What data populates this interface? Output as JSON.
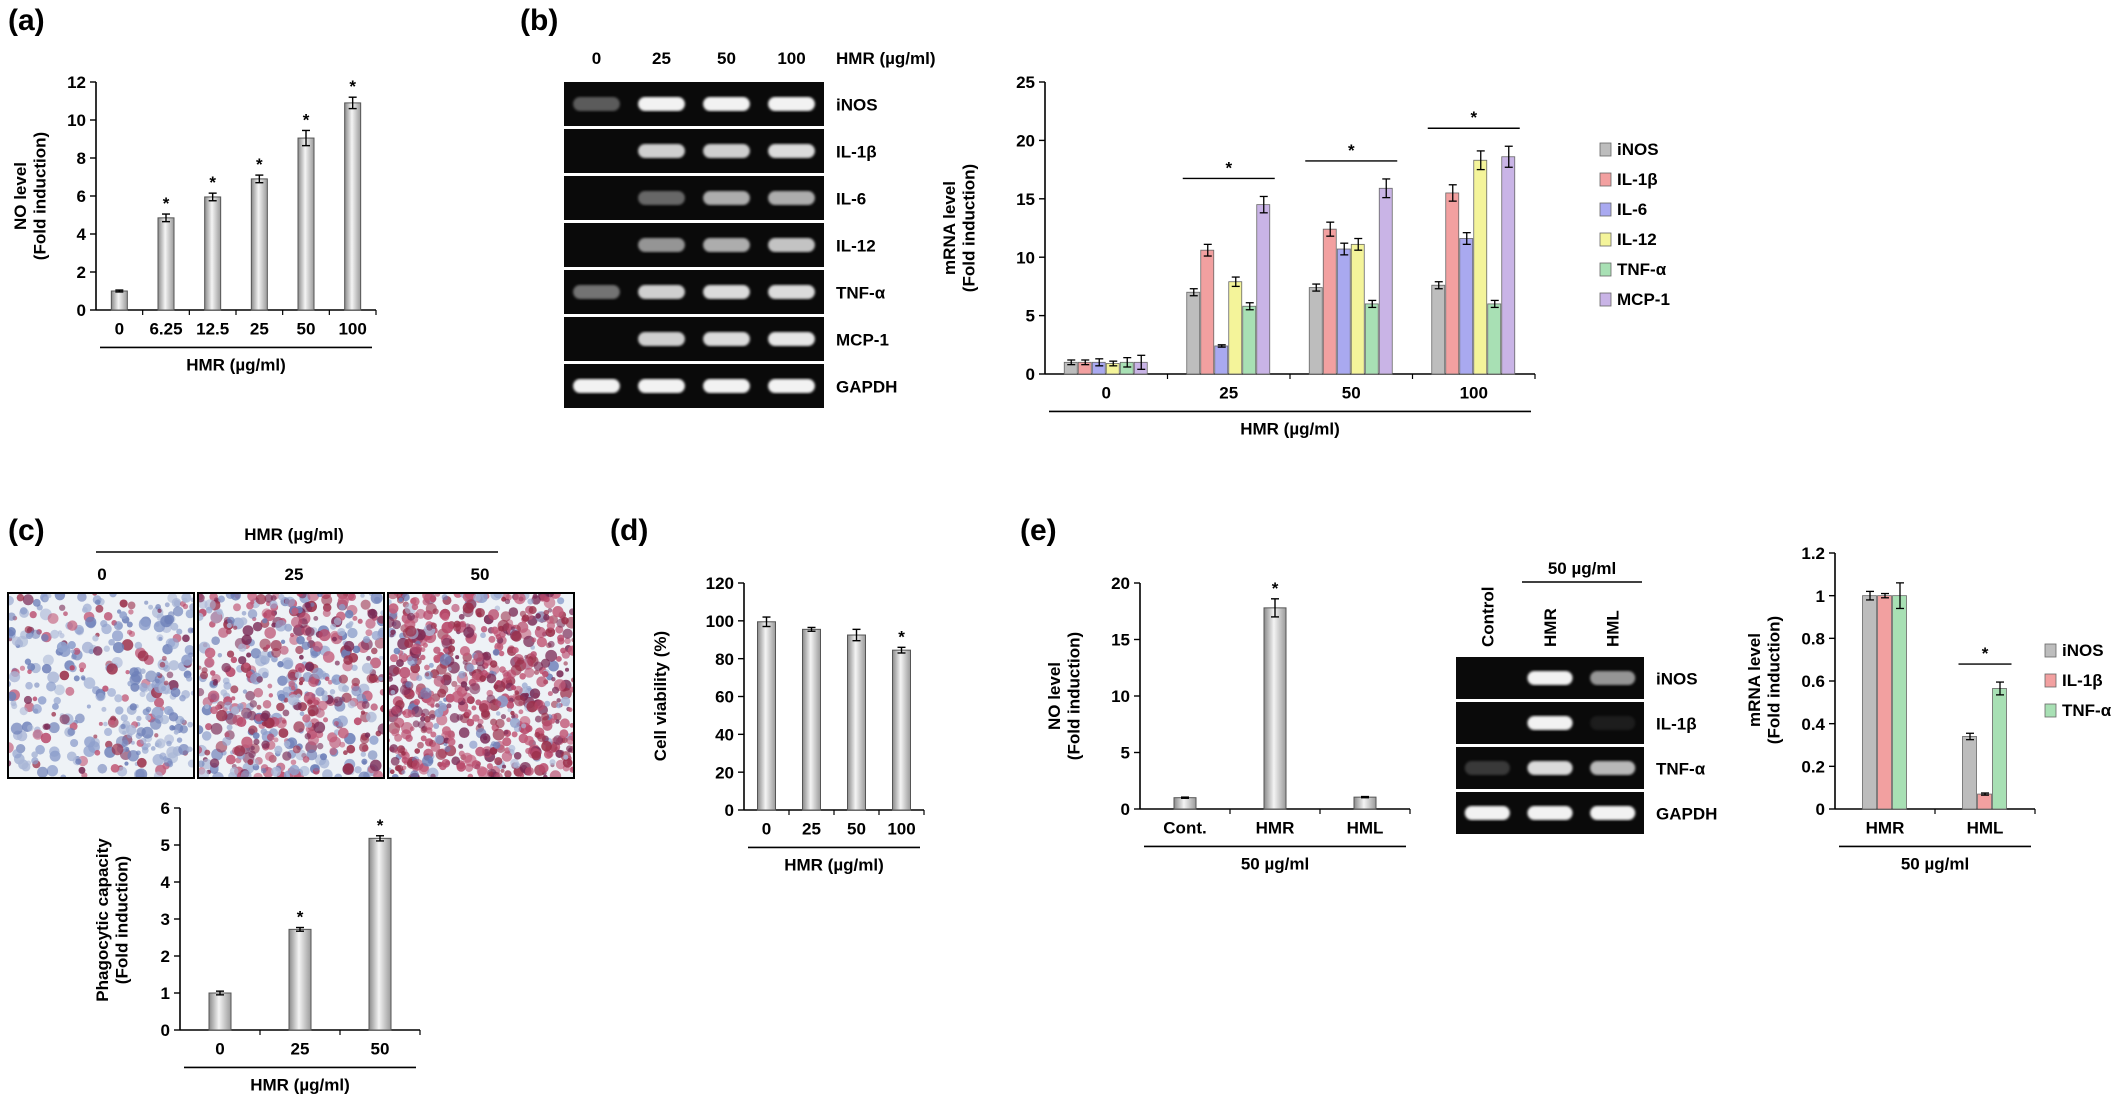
{
  "panels": {
    "a": {
      "letter": "(a)"
    },
    "b": {
      "letter": "(b)"
    },
    "c": {
      "letter": "(c)"
    },
    "d": {
      "letter": "(d)"
    },
    "e": {
      "letter": "(e)"
    }
  },
  "colors": {
    "iNOS": "#bdbdbd",
    "IL-1β": "#f2a0a0",
    "IL-6": "#a9a9f0",
    "IL-12": "#f4f49a",
    "TNF-α": "#a8e0b4",
    "MCP-1": "#c9b4e6",
    "gray_bar": "#c9c9c9",
    "gel_bg": "#0a0a0a",
    "band": "#f2f2f2"
  },
  "gel_b": {
    "lanes": [
      "0",
      "25",
      "50",
      "100"
    ],
    "treatment_label": "HMR (µg/ml)",
    "genes": [
      "iNOS",
      "IL-1β",
      "IL-6",
      "IL-12",
      "TNF-α",
      "MCP-1",
      "GAPDH"
    ],
    "band_intensity": [
      [
        0.35,
        1.0,
        1.0,
        1.0
      ],
      [
        0.0,
        0.85,
        0.85,
        0.9
      ],
      [
        0.0,
        0.4,
        0.7,
        0.7
      ],
      [
        0.0,
        0.6,
        0.7,
        0.8
      ],
      [
        0.45,
        0.85,
        0.9,
        0.9
      ],
      [
        0.0,
        0.85,
        0.9,
        0.95
      ],
      [
        1.0,
        1.0,
        1.0,
        1.0
      ]
    ]
  },
  "gel_e": {
    "lanes": [
      "Control",
      "HMR",
      "HML"
    ],
    "group_label": "50 µg/ml",
    "genes": [
      "iNOS",
      "IL-1β",
      "TNF-α",
      "GAPDH"
    ],
    "band_intensity": [
      [
        0.0,
        1.0,
        0.6
      ],
      [
        0.0,
        1.0,
        0.08
      ],
      [
        0.2,
        0.9,
        0.75
      ],
      [
        1.0,
        1.0,
        1.0
      ]
    ]
  },
  "micrographs_c": {
    "header": "HMR (µg/ml)",
    "labels": [
      "0",
      "25",
      "50"
    ],
    "stain_density": [
      0.25,
      0.55,
      0.85
    ]
  },
  "chart_data": [
    {
      "id": "a",
      "type": "bar",
      "categories": [
        "0",
        "6.25",
        "12.5",
        "25",
        "50",
        "100"
      ],
      "values": [
        1.0,
        4.85,
        5.95,
        6.9,
        9.05,
        10.9
      ],
      "errors": [
        0.05,
        0.2,
        0.2,
        0.2,
        0.4,
        0.3
      ],
      "significance": [
        "",
        "*",
        "*",
        "*",
        "*",
        "*"
      ],
      "ylabel": "NO level",
      "ylabel2": "(Fold induction)",
      "xlabel": "HMR (µg/ml)",
      "ylim": [
        0,
        12
      ],
      "yticks": [
        "0",
        "2",
        "4",
        "6",
        "8",
        "10",
        "12"
      ]
    },
    {
      "id": "b",
      "type": "bar",
      "categories": [
        "0",
        "25",
        "50",
        "100"
      ],
      "series": [
        {
          "name": "iNOS",
          "values": [
            1.0,
            7.0,
            7.4,
            7.6
          ],
          "errors": [
            0.2,
            0.3,
            0.3,
            0.3
          ]
        },
        {
          "name": "IL-1β",
          "values": [
            1.0,
            10.6,
            12.4,
            15.5
          ],
          "errors": [
            0.2,
            0.5,
            0.6,
            0.7
          ]
        },
        {
          "name": "IL-6",
          "values": [
            1.0,
            2.4,
            10.7,
            11.6
          ],
          "errors": [
            0.3,
            0.1,
            0.5,
            0.5
          ]
        },
        {
          "name": "IL-12",
          "values": [
            0.9,
            7.9,
            11.1,
            18.3
          ],
          "errors": [
            0.2,
            0.4,
            0.5,
            0.8
          ]
        },
        {
          "name": "TNF-α",
          "values": [
            1.0,
            5.8,
            6.0,
            6.0
          ],
          "errors": [
            0.4,
            0.3,
            0.3,
            0.3
          ]
        },
        {
          "name": "MCP-1",
          "values": [
            1.0,
            14.5,
            15.9,
            18.6
          ],
          "errors": [
            0.6,
            0.7,
            0.8,
            0.9
          ]
        }
      ],
      "group_significance": [
        "",
        "*",
        "*",
        "*"
      ],
      "ylabel": "mRNA level",
      "ylabel2": "(Fold induction)",
      "xlabel": "HMR (µg/ml)",
      "ylim": [
        0,
        25
      ],
      "yticks": [
        "0",
        "5",
        "10",
        "15",
        "20",
        "25"
      ],
      "legend": "right"
    },
    {
      "id": "c",
      "type": "bar",
      "categories": [
        "0",
        "25",
        "50"
      ],
      "values": [
        1.0,
        2.72,
        5.18
      ],
      "errors": [
        0.05,
        0.05,
        0.07
      ],
      "significance": [
        "",
        "*",
        "*"
      ],
      "ylabel": "Phagocytic capacity",
      "ylabel2": "(Fold induction)",
      "xlabel": "HMR (µg/ml)",
      "ylim": [
        0,
        6
      ],
      "yticks": [
        "0",
        "1",
        "2",
        "3",
        "4",
        "5",
        "6"
      ]
    },
    {
      "id": "d",
      "type": "bar",
      "categories": [
        "0",
        "25",
        "50",
        "100"
      ],
      "values": [
        99.5,
        95.5,
        92.5,
        84.5
      ],
      "errors": [
        2.5,
        1.0,
        3.0,
        1.5
      ],
      "significance": [
        "",
        "",
        "",
        "*"
      ],
      "ylabel": "Cell viability (%)",
      "xlabel": "HMR (µg/ml)",
      "ylim": [
        0,
        120
      ],
      "yticks": [
        "0",
        "20",
        "40",
        "60",
        "80",
        "100",
        "120"
      ]
    },
    {
      "id": "e1",
      "type": "bar",
      "categories": [
        "Cont.",
        "HMR",
        "HML"
      ],
      "values": [
        1.0,
        17.8,
        1.05
      ],
      "errors": [
        0.05,
        0.8,
        0.05
      ],
      "significance": [
        "",
        "*",
        ""
      ],
      "ylabel": "NO level",
      "ylabel2": "(Fold induction)",
      "xlabel": "50 µg/ml",
      "ylim": [
        0,
        20
      ],
      "yticks": [
        "0",
        "5",
        "10",
        "15",
        "20"
      ]
    },
    {
      "id": "e2",
      "type": "bar",
      "categories": [
        "HMR",
        "HML"
      ],
      "series": [
        {
          "name": "iNOS",
          "values": [
            1.0,
            0.34
          ],
          "errors": [
            0.02,
            0.015
          ]
        },
        {
          "name": "IL-1β",
          "values": [
            1.0,
            0.07
          ],
          "errors": [
            0.01,
            0.005
          ]
        },
        {
          "name": "TNF-α",
          "values": [
            1.0,
            0.565
          ],
          "errors": [
            0.06,
            0.03
          ]
        }
      ],
      "group_significance": [
        "",
        "*"
      ],
      "ylabel": "mRNA level",
      "ylabel2": "(Fold induction)",
      "xlabel": "50 µg/ml",
      "ylim": [
        0,
        1.2
      ],
      "yticks": [
        "0",
        "0.2",
        "0.4",
        "0.6",
        "0.8",
        "1",
        "1.2"
      ],
      "legend": "right"
    }
  ]
}
